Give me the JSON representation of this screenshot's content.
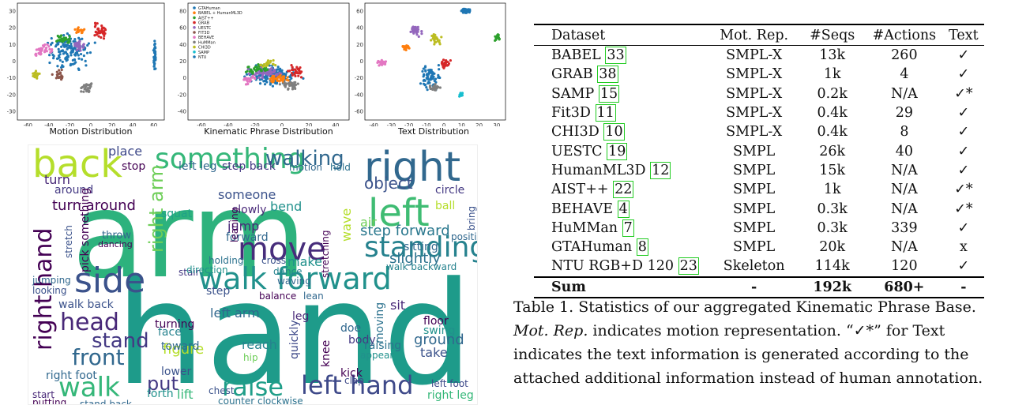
{
  "plots": [
    {
      "id": "motion",
      "title": "Motion Distribution",
      "x_ticks": [
        "-60",
        "-40",
        "-20",
        "0",
        "20",
        "40",
        "60"
      ],
      "y_ticks": [
        "30",
        "20",
        "10",
        "0",
        "-10",
        "-20",
        "-30"
      ]
    },
    {
      "id": "kinematic",
      "title": "Kinematic Phrase Distribution",
      "x_ticks": [
        "-60",
        "-40",
        "-20",
        "0",
        "20",
        "40"
      ],
      "y_ticks": [
        "80",
        "60",
        "40",
        "20",
        "0",
        "-20",
        "-40"
      ],
      "legend": [
        "GTAHuman",
        "BABEL + HumanML3D",
        "AIST++",
        "GRAB",
        "UESTC",
        "FIT3D",
        "BEHAVE",
        "HuMMan",
        "CHI3D",
        "SAMP",
        "NTU"
      ]
    },
    {
      "id": "text",
      "title": "Text Distribution",
      "x_ticks": [
        "-40",
        "-30",
        "-20",
        "-10",
        "0",
        "10",
        "20",
        "30"
      ],
      "y_ticks": [
        "60",
        "40",
        "20",
        "0",
        "-20",
        "-40",
        "-60"
      ]
    }
  ],
  "colors": [
    "#1f77b4",
    "#ff7f0e",
    "#2ca02c",
    "#d62728",
    "#9467bd",
    "#8c564b",
    "#e377c2",
    "#7f7f7f",
    "#bcbd22",
    "#17becf"
  ],
  "wordcloud": [
    "arm",
    "hand",
    "right",
    "left",
    "walk forward",
    "back",
    "something",
    "walking",
    "side",
    "right hand",
    "standing",
    "move",
    "raise",
    "left hand",
    "walk",
    "head",
    "front",
    "stand",
    "step forward",
    "right arm",
    "left arm",
    "put",
    "turn around",
    "jump",
    "object",
    "wave",
    "slightly",
    "walk backward",
    "squat",
    "forward",
    "place",
    "stop",
    "turn",
    "around",
    "throw",
    "dancing",
    "holding",
    "cross",
    "motion",
    "hold",
    "bend",
    "someone",
    "slowly",
    "reach",
    "hip",
    "quickly",
    "knee",
    "doe",
    "body",
    "moving",
    "take",
    "ground",
    "floor",
    "swing",
    "sit",
    "walk back",
    "step back",
    "left leg",
    "right leg",
    "left foot",
    "right foot",
    "kick",
    "figure",
    "lower",
    "face",
    "toward",
    "turning",
    "chest",
    "lift",
    "forth",
    "counter clockwise",
    "start",
    "putting",
    "stand back",
    "step",
    "stair",
    "direction",
    "dance",
    "waving",
    "balance",
    "leg",
    "jumping",
    "looking",
    "leaning",
    "clap",
    "raising",
    "appear",
    "sitting",
    "circle",
    "bring",
    "position",
    "stretching",
    "air",
    "ball",
    "pick something",
    "stretch",
    "lean",
    "make"
  ],
  "table": {
    "headers": [
      "Dataset",
      "Mot. Rep.",
      "#Seqs",
      "#Actions",
      "Text"
    ],
    "rows": [
      {
        "name": "BABEL",
        "ref": "33",
        "rep": "SMPL-X",
        "seqs": "13k",
        "acts": "260",
        "text": "✓"
      },
      {
        "name": "GRAB",
        "ref": "38",
        "rep": "SMPL-X",
        "seqs": "1k",
        "acts": "4",
        "text": "✓"
      },
      {
        "name": "SAMP",
        "ref": "15",
        "rep": "SMPL-X",
        "seqs": "0.2k",
        "acts": "N/A",
        "text": "✓*"
      },
      {
        "name": "Fit3D",
        "ref": "11",
        "rep": "SMPL-X",
        "seqs": "0.4k",
        "acts": "29",
        "text": "✓"
      },
      {
        "name": "CHI3D",
        "ref": "10",
        "rep": "SMPL-X",
        "seqs": "0.4k",
        "acts": "8",
        "text": "✓"
      },
      {
        "name": "UESTC",
        "ref": "19",
        "rep": "SMPL",
        "seqs": "26k",
        "acts": "40",
        "text": "✓"
      },
      {
        "name": "HumanML3D",
        "ref": "12",
        "rep": "SMPL",
        "seqs": "15k",
        "acts": "N/A",
        "text": "✓"
      },
      {
        "name": "AIST++",
        "ref": "22",
        "rep": "SMPL",
        "seqs": "1k",
        "acts": "N/A",
        "text": "✓*"
      },
      {
        "name": "BEHAVE",
        "ref": "4",
        "rep": "SMPL",
        "seqs": "0.3k",
        "acts": "N/A",
        "text": "✓*"
      },
      {
        "name": "HuMMan",
        "ref": "7",
        "rep": "SMPL",
        "seqs": "0.3k",
        "acts": "339",
        "text": "✓"
      },
      {
        "name": "GTAHuman",
        "ref": "8",
        "rep": "SMPL",
        "seqs": "20k",
        "acts": "N/A",
        "text": "x"
      },
      {
        "name": "NTU RGB+D 120",
        "ref": "23",
        "rep": "Skeleton",
        "seqs": "114k",
        "acts": "120",
        "text": "✓"
      }
    ],
    "sum": {
      "name": "Sum",
      "rep": "-",
      "seqs": "192k",
      "acts": "680+",
      "text": "-"
    }
  },
  "caption": {
    "part1": "Table 1. Statistics of our aggregated Kinematic Phrase Base. ",
    "mot_rep": "Mot. Rep.",
    "part2": " indicates motion representation. “✓*” for Text indicates the text information is generated according to the attached additional information instead of human annotation."
  }
}
